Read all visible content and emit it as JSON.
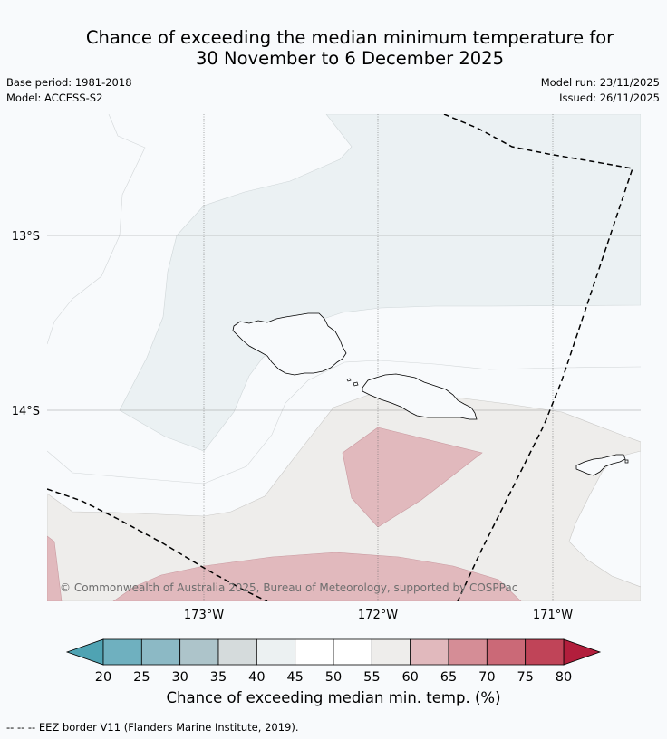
{
  "title_line1": "Chance of exceeding the median minimum temperature for",
  "title_line2": "30 November to 6 December 2025",
  "base_period": "Base period: 1981-2018",
  "model": "Model: ACCESS-S2",
  "model_run": "Model run: 23/11/2025",
  "issued": "Issued: 26/11/2025",
  "copyright": "© Commonwealth of Australia 2025, Bureau of Meteorology, supported by COSPPac",
  "lat_labels": [
    "13°S",
    "14°S"
  ],
  "lon_labels": [
    "173°W",
    "172°W",
    "171°W"
  ],
  "colorbar": {
    "ticks": [
      "20",
      "25",
      "30",
      "35",
      "40",
      "45",
      "50",
      "55",
      "60",
      "65",
      "70",
      "75",
      "80"
    ],
    "colors": [
      "#6fb0bf",
      "#8cb9c5",
      "#adc4ca",
      "#d5dbdc",
      "#ecf1f2",
      "#ffffff",
      "#ffffff",
      "#eeedeb",
      "#e1b9bd",
      "#d58d96",
      "#cb6977",
      "#c04458"
    ],
    "low_color": "#4fa3b3",
    "high_color": "#b21e3c",
    "title": "Chance of exceeding median min. temp. (%)"
  },
  "footer": "--  --  -- EEZ border V11 (Flanders Marine Institute, 2019).",
  "palette": {
    "background": "#f8fafc",
    "light_blue_zone": "#ebf1f3",
    "neutral_zone": "#eeedeb",
    "light_red_zone": "#e1b9bd"
  }
}
